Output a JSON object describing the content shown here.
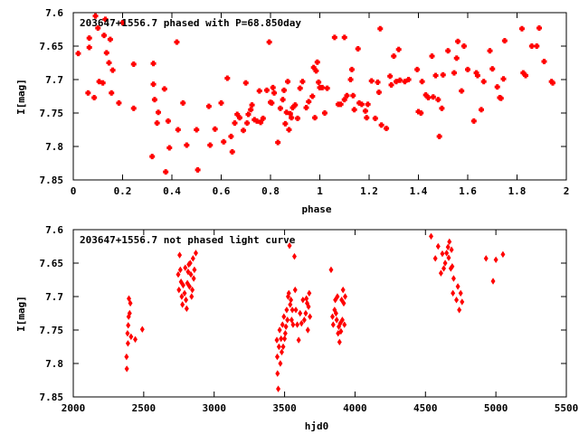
{
  "chart_data": [
    {
      "type": "scatter",
      "title": "203647+1556.7 phased with P=68.850day",
      "xlabel": "phase",
      "ylabel": "I[mag]",
      "xlim": [
        0,
        2
      ],
      "ylim": [
        7.6,
        7.85
      ],
      "y_inverted": true,
      "xticks": [
        0,
        0.2,
        0.4,
        0.6,
        0.8,
        1,
        1.2,
        1.4,
        1.6,
        1.8,
        2
      ],
      "yticks": [
        7.6,
        7.65,
        7.7,
        7.75,
        7.8,
        7.85
      ],
      "xtick_labels": [
        "0",
        "0.2",
        "0.4",
        "0.6",
        "0.8",
        "1",
        "1.2",
        "1.4",
        "1.6",
        "1.8",
        "2"
      ],
      "ytick_labels": [
        "7.6",
        "7.65",
        "7.7",
        "7.75",
        "7.8",
        "7.85"
      ],
      "marker": "plus",
      "color": "#ff0000",
      "points": [
        [
          0.02,
          7.661
        ],
        [
          0.06,
          7.72
        ],
        [
          0.065,
          7.652
        ],
        [
          0.065,
          7.638
        ],
        [
          0.085,
          7.727
        ],
        [
          0.09,
          7.605
        ],
        [
          0.1,
          7.623
        ],
        [
          0.105,
          7.703
        ],
        [
          0.12,
          7.705
        ],
        [
          0.125,
          7.634
        ],
        [
          0.13,
          7.61
        ],
        [
          0.135,
          7.66
        ],
        [
          0.145,
          7.675
        ],
        [
          0.15,
          7.64
        ],
        [
          0.155,
          7.72
        ],
        [
          0.16,
          7.686
        ],
        [
          0.185,
          7.735
        ],
        [
          0.2,
          7.615
        ],
        [
          0.245,
          7.677
        ],
        [
          0.245,
          7.743
        ],
        [
          0.32,
          7.815
        ],
        [
          0.325,
          7.676
        ],
        [
          0.325,
          7.707
        ],
        [
          0.33,
          7.73
        ],
        [
          0.345,
          7.749
        ],
        [
          0.34,
          7.765
        ],
        [
          0.37,
          7.714
        ],
        [
          0.375,
          7.838
        ],
        [
          0.385,
          7.762
        ],
        [
          0.39,
          7.802
        ],
        [
          0.42,
          7.644
        ],
        [
          0.425,
          7.775
        ],
        [
          0.445,
          7.735
        ],
        [
          0.46,
          7.798
        ],
        [
          0.5,
          7.775
        ],
        [
          0.505,
          7.835
        ],
        [
          0.55,
          7.74
        ],
        [
          0.555,
          7.798
        ],
        [
          0.575,
          7.774
        ],
        [
          0.6,
          7.735
        ],
        [
          0.61,
          7.793
        ],
        [
          0.625,
          7.698
        ],
        [
          0.64,
          7.785
        ],
        [
          0.645,
          7.808
        ],
        [
          0.655,
          7.765
        ],
        [
          0.665,
          7.752
        ],
        [
          0.675,
          7.757
        ],
        [
          0.69,
          7.776
        ],
        [
          0.7,
          7.705
        ],
        [
          0.705,
          7.765
        ],
        [
          0.71,
          7.752
        ],
        [
          0.72,
          7.745
        ],
        [
          0.725,
          7.738
        ],
        [
          0.735,
          7.76
        ],
        [
          0.745,
          7.762
        ],
        [
          0.755,
          7.717
        ],
        [
          0.76,
          7.764
        ],
        [
          0.77,
          7.758
        ],
        [
          0.785,
          7.716
        ],
        [
          0.795,
          7.644
        ],
        [
          0.8,
          7.734
        ],
        [
          0.805,
          7.735
        ],
        [
          0.81,
          7.712
        ],
        [
          0.815,
          7.72
        ],
        [
          0.83,
          7.794
        ],
        [
          0.84,
          7.743
        ],
        [
          0.85,
          7.73
        ],
        [
          0.855,
          7.716
        ],
        [
          0.86,
          7.766
        ],
        [
          0.865,
          7.749
        ],
        [
          0.87,
          7.703
        ],
        [
          0.875,
          7.775
        ],
        [
          0.88,
          7.751
        ],
        [
          0.885,
          7.757
        ],
        [
          0.89,
          7.742
        ],
        [
          0.9,
          7.738
        ],
        [
          0.91,
          7.758
        ],
        [
          0.92,
          7.713
        ],
        [
          0.93,
          7.703
        ],
        [
          0.945,
          7.742
        ],
        [
          0.955,
          7.733
        ],
        [
          0.97,
          7.725
        ],
        [
          0.975,
          7.682
        ],
        [
          0.98,
          7.757
        ],
        [
          0.985,
          7.687
        ],
        [
          0.99,
          7.674
        ],
        [
          0.995,
          7.704
        ],
        [
          1.0,
          7.712
        ],
        [
          1.01,
          7.712
        ],
        [
          1.02,
          7.75
        ],
        [
          1.03,
          7.713
        ],
        [
          1.06,
          7.637
        ],
        [
          1.075,
          7.737
        ],
        [
          1.085,
          7.737
        ],
        [
          1.1,
          7.637
        ],
        [
          1.1,
          7.73
        ],
        [
          1.11,
          7.724
        ],
        [
          1.125,
          7.7
        ],
        [
          1.13,
          7.685
        ],
        [
          1.135,
          7.724
        ],
        [
          1.14,
          7.745
        ],
        [
          1.155,
          7.654
        ],
        [
          1.16,
          7.735
        ],
        [
          1.17,
          7.737
        ],
        [
          1.185,
          7.747
        ],
        [
          1.19,
          7.757
        ],
        [
          1.195,
          7.737
        ],
        [
          1.21,
          7.702
        ],
        [
          1.225,
          7.758
        ],
        [
          1.235,
          7.704
        ],
        [
          1.24,
          7.719
        ],
        [
          1.245,
          7.624
        ],
        [
          1.25,
          7.768
        ],
        [
          1.27,
          7.773
        ],
        [
          1.285,
          7.695
        ],
        [
          1.29,
          7.708
        ],
        [
          1.3,
          7.665
        ],
        [
          1.31,
          7.703
        ],
        [
          1.32,
          7.655
        ],
        [
          1.325,
          7.701
        ],
        [
          1.345,
          7.703
        ],
        [
          1.36,
          7.7
        ],
        [
          1.395,
          7.685
        ],
        [
          1.4,
          7.748
        ],
        [
          1.41,
          7.75
        ],
        [
          1.415,
          7.703
        ],
        [
          1.43,
          7.723
        ],
        [
          1.44,
          7.727
        ],
        [
          1.455,
          7.665
        ],
        [
          1.46,
          7.726
        ],
        [
          1.47,
          7.694
        ],
        [
          1.48,
          7.73
        ],
        [
          1.485,
          7.785
        ],
        [
          1.495,
          7.743
        ],
        [
          1.5,
          7.693
        ],
        [
          1.52,
          7.657
        ],
        [
          1.545,
          7.69
        ],
        [
          1.555,
          7.668
        ],
        [
          1.56,
          7.643
        ],
        [
          1.575,
          7.717
        ],
        [
          1.585,
          7.65
        ],
        [
          1.6,
          7.685
        ],
        [
          1.625,
          7.762
        ],
        [
          1.635,
          7.69
        ],
        [
          1.64,
          7.694
        ],
        [
          1.655,
          7.745
        ],
        [
          1.665,
          7.703
        ],
        [
          1.69,
          7.657
        ],
        [
          1.7,
          7.684
        ],
        [
          1.72,
          7.711
        ],
        [
          1.73,
          7.727
        ],
        [
          1.735,
          7.728
        ],
        [
          1.745,
          7.699
        ],
        [
          1.75,
          7.642
        ],
        [
          1.82,
          7.624
        ],
        [
          1.825,
          7.69
        ],
        [
          1.835,
          7.694
        ],
        [
          1.86,
          7.65
        ],
        [
          1.88,
          7.65
        ],
        [
          1.89,
          7.623
        ],
        [
          1.91,
          7.673
        ],
        [
          1.94,
          7.703
        ],
        [
          1.945,
          7.705
        ]
      ]
    },
    {
      "type": "scatter",
      "title": "203647+1556.7 not phased light curve",
      "xlabel": "hjd0",
      "ylabel": "I[mag]",
      "xlim": [
        2000,
        5500
      ],
      "ylim": [
        7.6,
        7.85
      ],
      "y_inverted": true,
      "xticks": [
        2000,
        2500,
        3000,
        3500,
        4000,
        4500,
        5000,
        5500
      ],
      "yticks": [
        7.6,
        7.65,
        7.7,
        7.75,
        7.8,
        7.85
      ],
      "xtick_labels": [
        "2000",
        "2500",
        "3000",
        "3500",
        "4000",
        "4500",
        "5000",
        "5500"
      ],
      "ytick_labels": [
        "7.6",
        "7.65",
        "7.7",
        "7.75",
        "7.8",
        "7.85"
      ],
      "marker": "diamond",
      "color": "#ff0000",
      "points": [
        [
          2378,
          7.79
        ],
        [
          2380,
          7.808
        ],
        [
          2385,
          7.755
        ],
        [
          2388,
          7.77
        ],
        [
          2390,
          7.743
        ],
        [
          2393,
          7.73
        ],
        [
          2395,
          7.703
        ],
        [
          2400,
          7.725
        ],
        [
          2405,
          7.71
        ],
        [
          2410,
          7.76
        ],
        [
          2440,
          7.764
        ],
        [
          2490,
          7.749
        ],
        [
          2745,
          7.667
        ],
        [
          2750,
          7.69
        ],
        [
          2755,
          7.638
        ],
        [
          2760,
          7.66
        ],
        [
          2765,
          7.678
        ],
        [
          2770,
          7.7
        ],
        [
          2775,
          7.712
        ],
        [
          2780,
          7.683
        ],
        [
          2790,
          7.695
        ],
        [
          2795,
          7.657
        ],
        [
          2800,
          7.705
        ],
        [
          2805,
          7.718
        ],
        [
          2810,
          7.68
        ],
        [
          2815,
          7.663
        ],
        [
          2820,
          7.652
        ],
        [
          2825,
          7.685
        ],
        [
          2830,
          7.65
        ],
        [
          2835,
          7.667
        ],
        [
          2840,
          7.7
        ],
        [
          2845,
          7.69
        ],
        [
          2850,
          7.643
        ],
        [
          2855,
          7.673
        ],
        [
          2860,
          7.66
        ],
        [
          2870,
          7.635
        ],
        [
          3445,
          7.765
        ],
        [
          3448,
          7.79
        ],
        [
          3450,
          7.815
        ],
        [
          3455,
          7.838
        ],
        [
          3460,
          7.775
        ],
        [
          3465,
          7.75
        ],
        [
          3470,
          7.8
        ],
        [
          3475,
          7.763
        ],
        [
          3480,
          7.783
        ],
        [
          3485,
          7.742
        ],
        [
          3490,
          7.775
        ],
        [
          3495,
          7.73
        ],
        [
          3500,
          7.763
        ],
        [
          3505,
          7.755
        ],
        [
          3510,
          7.745
        ],
        [
          3515,
          7.72
        ],
        [
          3520,
          7.735
        ],
        [
          3525,
          7.7
        ],
        [
          3530,
          7.695
        ],
        [
          3535,
          7.624
        ],
        [
          3540,
          7.712
        ],
        [
          3545,
          7.705
        ],
        [
          3550,
          7.735
        ],
        [
          3555,
          7.72
        ],
        [
          3560,
          7.742
        ],
        [
          3570,
          7.64
        ],
        [
          3575,
          7.69
        ],
        [
          3580,
          7.72
        ],
        [
          3590,
          7.742
        ],
        [
          3600,
          7.765
        ],
        [
          3610,
          7.725
        ],
        [
          3620,
          7.74
        ],
        [
          3630,
          7.705
        ],
        [
          3640,
          7.735
        ],
        [
          3650,
          7.725
        ],
        [
          3655,
          7.703
        ],
        [
          3660,
          7.71
        ],
        [
          3665,
          7.75
        ],
        [
          3670,
          7.715
        ],
        [
          3675,
          7.695
        ],
        [
          3680,
          7.73
        ],
        [
          3830,
          7.66
        ],
        [
          3840,
          7.73
        ],
        [
          3845,
          7.742
        ],
        [
          3855,
          7.72
        ],
        [
          3860,
          7.705
        ],
        [
          3865,
          7.725
        ],
        [
          3870,
          7.735
        ],
        [
          3875,
          7.7
        ],
        [
          3880,
          7.755
        ],
        [
          3885,
          7.745
        ],
        [
          3890,
          7.768
        ],
        [
          3895,
          7.74
        ],
        [
          3900,
          7.752
        ],
        [
          3905,
          7.705
        ],
        [
          3910,
          7.735
        ],
        [
          3915,
          7.69
        ],
        [
          3920,
          7.71
        ],
        [
          3925,
          7.742
        ],
        [
          3930,
          7.7
        ],
        [
          4540,
          7.61
        ],
        [
          4570,
          7.643
        ],
        [
          4590,
          7.625
        ],
        [
          4610,
          7.665
        ],
        [
          4620,
          7.636
        ],
        [
          4630,
          7.658
        ],
        [
          4640,
          7.65
        ],
        [
          4650,
          7.635
        ],
        [
          4660,
          7.626
        ],
        [
          4665,
          7.642
        ],
        [
          4670,
          7.618
        ],
        [
          4680,
          7.658
        ],
        [
          4685,
          7.63
        ],
        [
          4690,
          7.655
        ],
        [
          4695,
          7.695
        ],
        [
          4700,
          7.673
        ],
        [
          4720,
          7.705
        ],
        [
          4730,
          7.685
        ],
        [
          4740,
          7.72
        ],
        [
          4750,
          7.695
        ],
        [
          4760,
          7.708
        ],
        [
          4930,
          7.643
        ],
        [
          4980,
          7.677
        ],
        [
          5000,
          7.645
        ],
        [
          5050,
          7.637
        ]
      ]
    }
  ]
}
